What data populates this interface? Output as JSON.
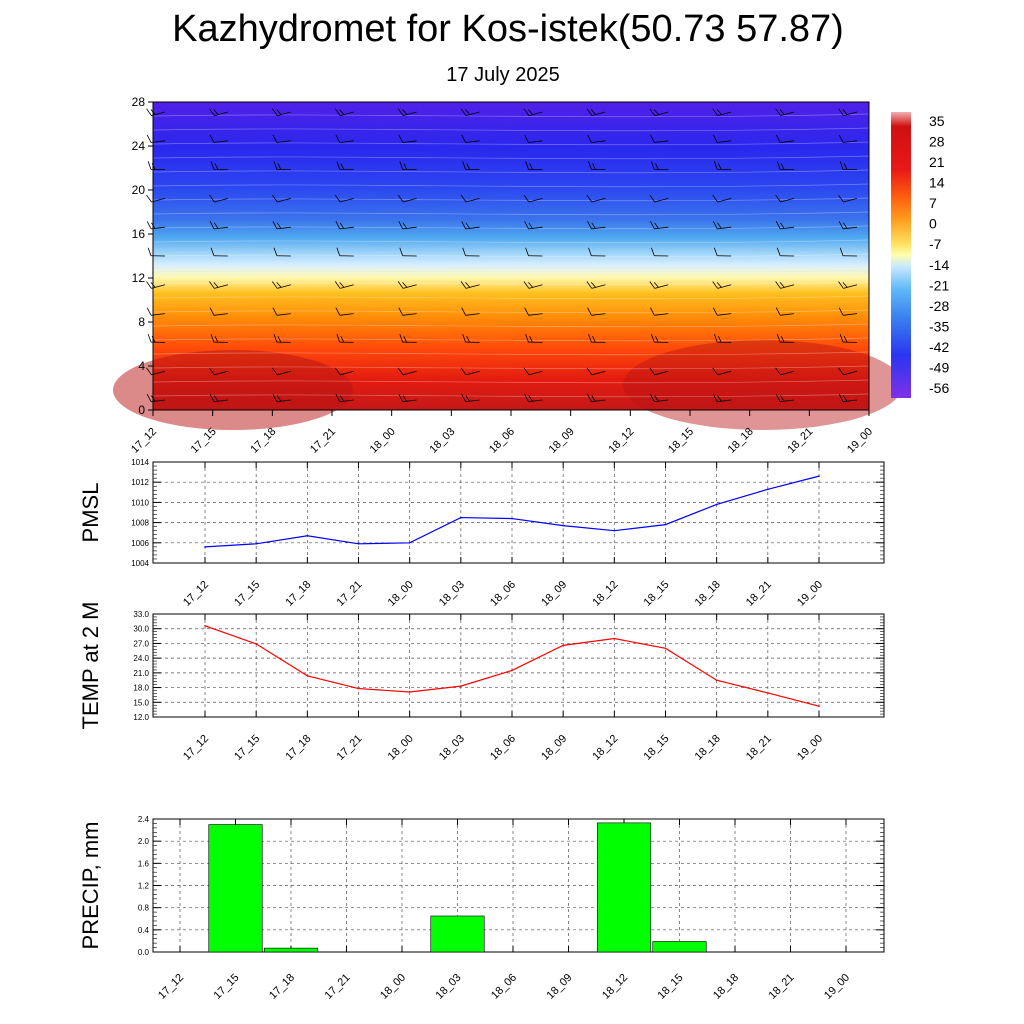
{
  "title": "Kazhydromet for Kos-istek(50.73 57.87)",
  "subtitle": "17 July 2025",
  "chart_data": [
    {
      "type": "heatmap",
      "x_labels": [
        "17_12",
        "17_15",
        "17_18",
        "17_21",
        "18_00",
        "18_03",
        "18_06",
        "18_09",
        "18_12",
        "18_15",
        "18_18",
        "18_21",
        "19_00"
      ],
      "y_ticks": [
        "0",
        "4",
        "8",
        "12",
        "16",
        "20",
        "24",
        "28"
      ],
      "ylim": [
        0,
        28
      ],
      "colorbar_labels": [
        "35",
        "28",
        "21",
        "14",
        "7",
        "0",
        "-7",
        "-14",
        "-21",
        "-28",
        "-35",
        "-42",
        "-49",
        "-56"
      ],
      "overlay": "wind barbs",
      "colors": {
        "high": "#c01010",
        "mid": "#ffffa0",
        "low": "#2222ee"
      }
    },
    {
      "type": "line",
      "ylabel": "PMSL",
      "x": [
        "17_12",
        "17_15",
        "17_18",
        "17_21",
        "18_00",
        "18_03",
        "18_06",
        "18_09",
        "18_12",
        "18_15",
        "18_18",
        "18_21",
        "19_00"
      ],
      "y_ticks": [
        "1004",
        "1006",
        "1008",
        "1010",
        "1012",
        "1014"
      ],
      "ylim": [
        1004,
        1014
      ],
      "values": [
        1005.6,
        1005.9,
        1006.7,
        1005.9,
        1006.0,
        1008.5,
        1008.4,
        1007.7,
        1007.2,
        1007.8,
        1009.8,
        1011.3,
        1012.6
      ],
      "color": "#0000ff",
      "grid": true
    },
    {
      "type": "line",
      "ylabel": "TEMP at 2 M",
      "x": [
        "17_12",
        "17_15",
        "17_18",
        "17_21",
        "18_00",
        "18_03",
        "18_06",
        "18_09",
        "18_12",
        "18_15",
        "18_18",
        "18_21",
        "19_00"
      ],
      "y_ticks": [
        "12.0",
        "15.0",
        "18.0",
        "21.0",
        "24.0",
        "27.0",
        "30.0",
        "33.0"
      ],
      "ylim": [
        12,
        33
      ],
      "values": [
        30.6,
        26.9,
        20.4,
        17.8,
        17.1,
        18.3,
        21.5,
        26.6,
        28.0,
        26.0,
        19.5,
        16.9,
        14.2
      ],
      "color": "#ff0000",
      "grid": true
    },
    {
      "type": "bar",
      "ylabel": "PRECIP, mm",
      "categories": [
        "17_12",
        "17_15",
        "17_18",
        "17_21",
        "18_00",
        "18_03",
        "18_06",
        "18_09",
        "18_12",
        "18_15",
        "18_18",
        "18_21",
        "19_00"
      ],
      "y_ticks": [
        "0.0",
        "0.4",
        "0.8",
        "1.2",
        "1.6",
        "2.0",
        "2.4"
      ],
      "ylim": [
        0,
        2.4
      ],
      "values": [
        0,
        2.3,
        0.07,
        0,
        0,
        0.65,
        0,
        0,
        2.33,
        0.19,
        0,
        0,
        0
      ],
      "color": "#00ff00",
      "grid": true
    }
  ]
}
